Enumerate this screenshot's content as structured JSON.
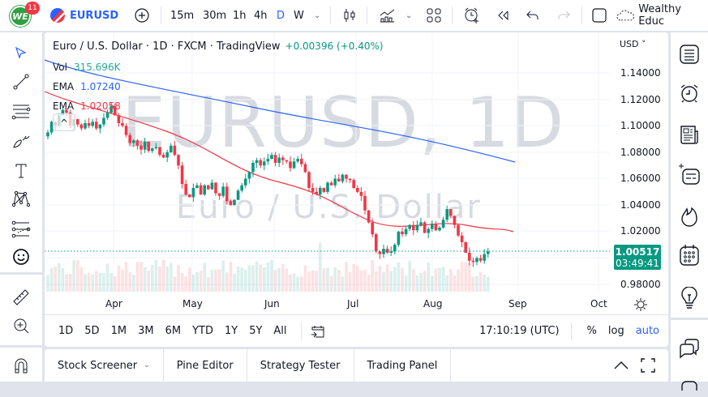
{
  "topbar": {
    "logo_text": "WE",
    "notification_count": "11",
    "symbol": "EURUSD",
    "intervals": [
      "15m",
      "30m",
      "1h",
      "4h",
      "D",
      "W"
    ],
    "active_interval": "D",
    "user_name": "Wealthy Educ",
    "icons": [
      "add-symbol-icon",
      "interval-dropdown-icon",
      "candle-style-icon",
      "indicators-icon",
      "indicators-dropdown-icon",
      "layout-icon",
      "alert-icon",
      "replay-icon",
      "undo-icon",
      "redo-icon",
      "fullscreen-square-icon",
      "cloud-icon"
    ]
  },
  "legend": {
    "title": "Euro / U.S. Dollar · 1D · FXCM · TradingView",
    "change": "+0.00396 (+0.40%)",
    "vol_label": "Vol",
    "vol_value": "315.696K",
    "ema1_label": "EMA",
    "ema1_value": "1.07240",
    "ema2_label": "EMA",
    "ema2_value": "1.02058",
    "collapse": "^"
  },
  "watermark": {
    "symbol": "EURUSD, 1D",
    "name": "Euro / U.S. Dollar"
  },
  "price_scale": {
    "currency": "USD ˅",
    "labels": [
      "1.14000",
      "1.12000",
      "1.10000",
      "1.08000",
      "1.06000",
      "1.04000",
      "1.02000",
      "0.98000"
    ],
    "current_price": "1.00517",
    "countdown": "03:49:41"
  },
  "time_axis": {
    "labels": [
      "Apr",
      "May",
      "Jun",
      "Jul",
      "Aug",
      "Sep",
      "Oct"
    ]
  },
  "bottom_toolbar": {
    "ranges": [
      "1D",
      "5D",
      "1M",
      "3M",
      "6M",
      "YTD",
      "1Y",
      "5Y",
      "All"
    ],
    "clock": "17:10:19 (UTC)",
    "percent": "%",
    "log": "log",
    "auto": "auto"
  },
  "panels": {
    "tabs": [
      "Stock Screener",
      "Pine Editor",
      "Strategy Tester",
      "Trading Panel"
    ]
  },
  "colors": {
    "up": "#089981",
    "down": "#f23645",
    "ema_long": "#2962ff",
    "ema_short": "#f23645",
    "accent": "#2962ff"
  },
  "chart_data": {
    "type": "candlestick",
    "title": "Euro / U.S. Dollar · 1D · FXCM",
    "x_labels": [
      "Apr",
      "May",
      "Jun",
      "Jul",
      "Aug",
      "Sep",
      "Oct"
    ],
    "y_ticks": [
      1.14,
      1.12,
      1.1,
      1.08,
      1.06,
      1.04,
      1.02,
      0.98
    ],
    "ylim": [
      0.97,
      1.15
    ],
    "last_price": 1.00517,
    "closes": [
      1.095,
      1.103,
      1.1,
      1.108,
      1.112,
      1.11,
      1.1,
      1.105,
      1.101,
      1.098,
      1.102,
      1.1,
      1.103,
      1.098,
      1.101,
      1.106,
      1.11,
      1.115,
      1.108,
      1.102,
      1.1,
      1.093,
      1.087,
      1.089,
      1.085,
      1.082,
      1.088,
      1.081,
      1.083,
      1.084,
      1.078,
      1.076,
      1.08,
      1.085,
      1.078,
      1.07,
      1.056,
      1.048,
      1.046,
      1.053,
      1.055,
      1.048,
      1.055,
      1.052,
      1.057,
      1.049,
      1.047,
      1.054,
      1.043,
      1.04,
      1.044,
      1.051,
      1.055,
      1.06,
      1.065,
      1.072,
      1.074,
      1.07,
      1.073,
      1.075,
      1.078,
      1.072,
      1.076,
      1.074,
      1.073,
      1.068,
      1.073,
      1.075,
      1.071,
      1.065,
      1.053,
      1.05,
      1.048,
      1.053,
      1.05,
      1.057,
      1.055,
      1.06,
      1.058,
      1.063,
      1.06,
      1.059,
      1.053,
      1.05,
      1.047,
      1.036,
      1.027,
      1.018,
      1.005,
      1.003,
      1.007,
      1.004,
      1.005,
      1.01,
      1.02,
      1.018,
      1.022,
      1.025,
      1.021,
      1.025,
      1.027,
      1.019,
      1.022,
      1.026,
      1.021,
      1.023,
      1.029,
      1.037,
      1.032,
      1.025,
      1.017,
      1.012,
      1.004,
      0.998,
      0.997,
      1.0,
      0.998,
      1.003,
      1.005
    ],
    "ema_long_endpoints": {
      "start": 1.15,
      "end": 1.0724
    },
    "ema_short_endpoints": {
      "start": 1.126,
      "end": 1.0206
    }
  }
}
